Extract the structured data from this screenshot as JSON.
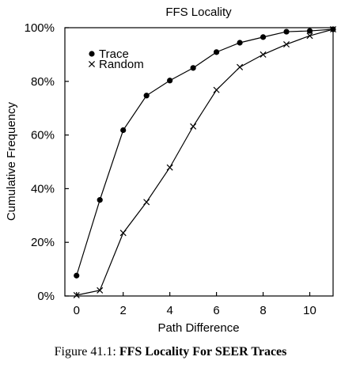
{
  "chart_data": {
    "type": "line",
    "title": "FFS Locality",
    "xlabel": "Path Difference",
    "ylabel": "Cumulative Frequency",
    "xlim": [
      -0.5,
      11
    ],
    "ylim": [
      0,
      100
    ],
    "x_ticks": [
      0,
      2,
      4,
      6,
      8,
      10
    ],
    "x_tick_labels": [
      "0",
      "2",
      "4",
      "6",
      "8",
      "10"
    ],
    "y_ticks": [
      0,
      20,
      40,
      60,
      80,
      100
    ],
    "y_tick_labels": [
      "0%",
      "20%",
      "40%",
      "60%",
      "80%",
      "100%"
    ],
    "legend_position": "top-left",
    "grid": false,
    "series": [
      {
        "name": "Trace",
        "marker": "filled-circle",
        "x": [
          0,
          1,
          2,
          3,
          4,
          5,
          6,
          7,
          8,
          9,
          10,
          11
        ],
        "y": [
          7.6,
          35.8,
          61.8,
          74.7,
          80.3,
          85.0,
          90.9,
          94.4,
          96.5,
          98.5,
          98.8,
          99.4
        ]
      },
      {
        "name": "Random",
        "marker": "x",
        "x": [
          0,
          1,
          2,
          3,
          4,
          5,
          6,
          7,
          8,
          9,
          10,
          11
        ],
        "y": [
          0.3,
          2.1,
          23.5,
          35.0,
          47.9,
          63.2,
          76.8,
          85.3,
          90.0,
          93.8,
          97.0,
          99.4
        ]
      }
    ]
  },
  "caption": {
    "prefix": "Figure 41.1: ",
    "title": "FFS Locality For SEER Traces"
  }
}
